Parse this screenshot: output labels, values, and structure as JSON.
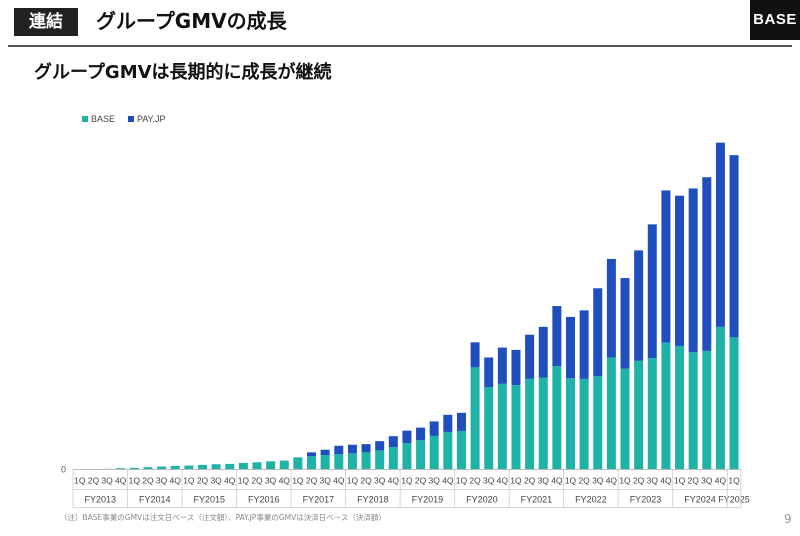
{
  "header": {
    "tag": "連結",
    "title": "グループGMVの成長",
    "logo": "BASE"
  },
  "subtitle": "グループGMVは長期的に成長が継続",
  "footnote": "（注）BASE事業のGMVは注文日ベース（注文額）、PAY.JP事業のGMVは決済日ベース（決済額）",
  "page_number": "9",
  "colors": {
    "BASE": "#1fb3a8",
    "PAY.JP": "#1f4fbf"
  },
  "chart_data": {
    "type": "bar",
    "stacked": true,
    "legend_position": "top-left",
    "y_ticks": [
      "0"
    ],
    "ylim": [
      0,
      100
    ],
    "quarter_labels": [
      "1Q",
      "2Q",
      "3Q",
      "4Q"
    ],
    "fiscal_years": [
      "FY2013",
      "FY2014",
      "FY2015",
      "FY2016",
      "FY2017",
      "FY2018",
      "FY2019",
      "FY2020",
      "FY2021",
      "FY2022",
      "FY2023",
      "FY2024",
      "FY2025"
    ],
    "categories": [
      "FY2013 1Q",
      "FY2013 2Q",
      "FY2013 3Q",
      "FY2013 4Q",
      "FY2014 1Q",
      "FY2014 2Q",
      "FY2014 3Q",
      "FY2014 4Q",
      "FY2015 1Q",
      "FY2015 2Q",
      "FY2015 3Q",
      "FY2015 4Q",
      "FY2016 1Q",
      "FY2016 2Q",
      "FY2016 3Q",
      "FY2016 4Q",
      "FY2017 1Q",
      "FY2017 2Q",
      "FY2017 3Q",
      "FY2017 4Q",
      "FY2018 1Q",
      "FY2018 2Q",
      "FY2018 3Q",
      "FY2018 4Q",
      "FY2019 1Q",
      "FY2019 2Q",
      "FY2019 3Q",
      "FY2019 4Q",
      "FY2020 1Q",
      "FY2020 2Q",
      "FY2020 3Q",
      "FY2020 4Q",
      "FY2021 1Q",
      "FY2021 2Q",
      "FY2021 3Q",
      "FY2021 4Q",
      "FY2022 1Q",
      "FY2022 2Q",
      "FY2022 3Q",
      "FY2022 4Q",
      "FY2023 1Q",
      "FY2023 2Q",
      "FY2023 3Q",
      "FY2023 4Q",
      "FY2024 1Q",
      "FY2024 2Q",
      "FY2024 3Q",
      "FY2024 4Q",
      "FY2025 1Q"
    ],
    "series": [
      {
        "name": "BASE",
        "values": [
          0.0,
          0.1,
          0.2,
          0.4,
          0.5,
          0.7,
          0.9,
          1.1,
          1.2,
          1.4,
          1.6,
          1.7,
          2.0,
          2.2,
          2.5,
          2.7,
          3.7,
          4.0,
          4.4,
          4.7,
          4.9,
          5.2,
          5.8,
          6.8,
          8.0,
          8.9,
          10.2,
          11.4,
          11.7,
          31.0,
          25.0,
          26.0,
          25.6,
          27.5,
          27.9,
          31.4,
          27.7,
          27.5,
          28.3,
          34.0,
          30.6,
          33.0,
          33.8,
          38.5,
          37.5,
          35.6,
          36.0,
          43.3,
          40.1
        ]
      },
      {
        "name": "PAY.JP",
        "values": [
          0.0,
          0.0,
          0.0,
          0.0,
          0.0,
          0.0,
          0.0,
          0.0,
          0.0,
          0.0,
          0.0,
          0.0,
          0.0,
          0.0,
          0.0,
          0.0,
          0.0,
          1.2,
          1.6,
          2.5,
          2.6,
          2.5,
          2.8,
          3.3,
          3.8,
          3.8,
          4.4,
          5.2,
          5.5,
          7.6,
          9.0,
          11.0,
          10.7,
          13.4,
          15.4,
          18.2,
          18.6,
          20.8,
          26.7,
          29.9,
          27.5,
          33.5,
          40.6,
          46.2,
          45.6,
          49.7,
          52.7,
          55.9,
          55.3
        ]
      }
    ]
  }
}
